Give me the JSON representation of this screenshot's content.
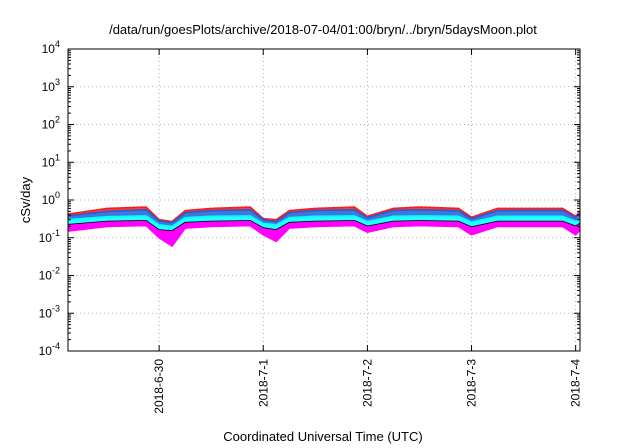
{
  "chart_data": {
    "type": "area",
    "title": "/data/run/goesPlots/archive/2018-07-04/01:00/bryn/../bryn/5daysMoon.plot",
    "xlabel": "Coordinated Universal Time (UTC)",
    "ylabel": "cSv/day",
    "yscale": "log",
    "ylim": [
      0.0001,
      10000
    ],
    "xlim": [
      "2018-06-29T03:00",
      "2018-07-04T01:00"
    ],
    "grid": true,
    "x_ticks": [
      "2018-6-30",
      "2018-7-1",
      "2018-7-2",
      "2018-7-3",
      "2018-7-4"
    ],
    "y_ticks": [
      {
        "base": "10",
        "exp": "4",
        "value": 10000
      },
      {
        "base": "10",
        "exp": "3",
        "value": 1000
      },
      {
        "base": "10",
        "exp": "2",
        "value": 100
      },
      {
        "base": "10",
        "exp": "1",
        "value": 10
      },
      {
        "base": "10",
        "exp": "0",
        "value": 1
      },
      {
        "base": "10",
        "exp": "-1",
        "value": 0.1
      },
      {
        "base": "10",
        "exp": "-2",
        "value": 0.01
      },
      {
        "base": "10",
        "exp": "-3",
        "value": 0.001
      },
      {
        "base": "10",
        "exp": "-4",
        "value": 0.0001
      }
    ],
    "series": [
      {
        "color": "#ff00ff",
        "x": [
          "2018-06-29T03:00",
          "2018-06-29T12:00",
          "2018-06-29T21:00",
          "2018-06-30T00:00",
          "2018-06-30T03:00",
          "2018-06-30T06:00",
          "2018-06-30T12:00",
          "2018-06-30T21:00",
          "2018-07-01T00:00",
          "2018-07-01T03:00",
          "2018-07-01T06:00",
          "2018-07-01T12:00",
          "2018-07-01T21:00",
          "2018-07-02T00:00",
          "2018-07-02T06:00",
          "2018-07-02T12:00",
          "2018-07-02T21:00",
          "2018-07-03T00:00",
          "2018-07-03T06:00",
          "2018-07-03T12:00",
          "2018-07-03T21:00",
          "2018-07-04T00:00",
          "2018-07-04T01:00"
        ],
        "y": [
          0.15,
          0.2,
          0.21,
          0.1,
          0.06,
          0.18,
          0.2,
          0.21,
          0.12,
          0.08,
          0.18,
          0.2,
          0.21,
          0.14,
          0.2,
          0.21,
          0.2,
          0.12,
          0.2,
          0.2,
          0.2,
          0.12,
          0.16
        ]
      },
      {
        "color": "#000000",
        "x": [
          "2018-06-29T03:00",
          "2018-06-29T12:00",
          "2018-06-29T21:00",
          "2018-06-30T00:00",
          "2018-06-30T03:00",
          "2018-06-30T06:00",
          "2018-06-30T12:00",
          "2018-06-30T21:00",
          "2018-07-01T00:00",
          "2018-07-01T03:00",
          "2018-07-01T06:00",
          "2018-07-01T12:00",
          "2018-07-01T21:00",
          "2018-07-02T00:00",
          "2018-07-02T06:00",
          "2018-07-02T12:00",
          "2018-07-02T21:00",
          "2018-07-03T00:00",
          "2018-07-03T06:00",
          "2018-07-03T12:00",
          "2018-07-03T21:00",
          "2018-07-04T00:00",
          "2018-07-04T01:00"
        ],
        "y": [
          0.22,
          0.27,
          0.28,
          0.16,
          0.15,
          0.25,
          0.27,
          0.28,
          0.18,
          0.16,
          0.25,
          0.27,
          0.28,
          0.2,
          0.27,
          0.28,
          0.27,
          0.19,
          0.27,
          0.27,
          0.27,
          0.2,
          0.24
        ]
      },
      {
        "color": "#00ffff",
        "x": [
          "2018-06-29T03:00",
          "2018-06-29T12:00",
          "2018-06-29T21:00",
          "2018-06-30T00:00",
          "2018-06-30T03:00",
          "2018-06-30T06:00",
          "2018-06-30T12:00",
          "2018-06-30T21:00",
          "2018-07-01T00:00",
          "2018-07-01T03:00",
          "2018-07-01T06:00",
          "2018-07-01T12:00",
          "2018-07-01T21:00",
          "2018-07-02T00:00",
          "2018-07-02T06:00",
          "2018-07-02T12:00",
          "2018-07-02T21:00",
          "2018-07-03T00:00",
          "2018-07-03T06:00",
          "2018-07-03T12:00",
          "2018-07-03T21:00",
          "2018-07-04T00:00",
          "2018-07-04T01:00"
        ],
        "y": [
          0.3,
          0.36,
          0.38,
          0.22,
          0.2,
          0.34,
          0.37,
          0.38,
          0.24,
          0.22,
          0.34,
          0.37,
          0.38,
          0.27,
          0.37,
          0.38,
          0.37,
          0.26,
          0.37,
          0.37,
          0.37,
          0.27,
          0.32
        ]
      },
      {
        "color": "#1f5fd6",
        "x": [
          "2018-06-29T03:00",
          "2018-06-29T12:00",
          "2018-06-29T21:00",
          "2018-06-30T00:00",
          "2018-06-30T03:00",
          "2018-06-30T06:00",
          "2018-06-30T12:00",
          "2018-06-30T21:00",
          "2018-07-01T00:00",
          "2018-07-01T03:00",
          "2018-07-01T06:00",
          "2018-07-01T12:00",
          "2018-07-01T21:00",
          "2018-07-02T00:00",
          "2018-07-02T06:00",
          "2018-07-02T12:00",
          "2018-07-02T21:00",
          "2018-07-03T00:00",
          "2018-07-03T06:00",
          "2018-07-03T12:00",
          "2018-07-03T21:00",
          "2018-07-04T00:00",
          "2018-07-04T01:00"
        ],
        "y": [
          0.38,
          0.5,
          0.55,
          0.28,
          0.25,
          0.46,
          0.52,
          0.55,
          0.3,
          0.27,
          0.46,
          0.53,
          0.55,
          0.34,
          0.53,
          0.55,
          0.52,
          0.32,
          0.52,
          0.53,
          0.53,
          0.34,
          0.45
        ]
      },
      {
        "color": "#ff1a1a",
        "x": [
          "2018-06-29T03:00",
          "2018-06-29T12:00",
          "2018-06-29T21:00",
          "2018-06-30T00:00",
          "2018-06-30T03:00",
          "2018-06-30T06:00",
          "2018-06-30T12:00",
          "2018-06-30T21:00",
          "2018-07-01T00:00",
          "2018-07-01T03:00",
          "2018-07-01T06:00",
          "2018-07-01T12:00",
          "2018-07-01T21:00",
          "2018-07-02T00:00",
          "2018-07-02T06:00",
          "2018-07-02T12:00",
          "2018-07-02T21:00",
          "2018-07-03T00:00",
          "2018-07-03T06:00",
          "2018-07-03T12:00",
          "2018-07-03T21:00",
          "2018-07-04T00:00",
          "2018-07-04T01:00"
        ],
        "y": [
          0.42,
          0.6,
          0.65,
          0.3,
          0.27,
          0.52,
          0.6,
          0.65,
          0.32,
          0.3,
          0.52,
          0.6,
          0.65,
          0.37,
          0.6,
          0.65,
          0.6,
          0.35,
          0.6,
          0.6,
          0.6,
          0.37,
          0.5
        ]
      }
    ]
  }
}
